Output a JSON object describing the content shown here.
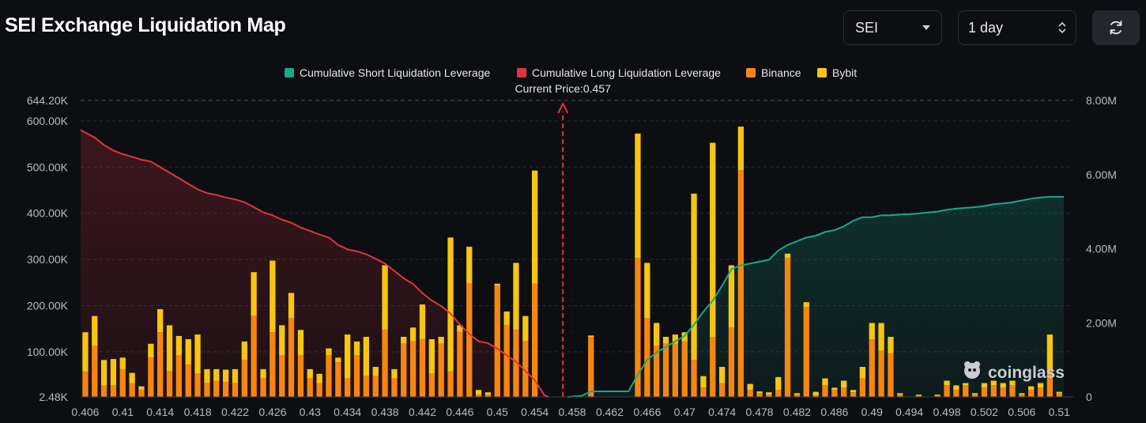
{
  "header": {
    "title": "SEI Exchange Liquidation Map",
    "coin_select": "SEI",
    "range_select": "1 day"
  },
  "colors": {
    "short_line": "#16a98a",
    "long_line": "#e0353e",
    "binance": "#f7860f",
    "bybit": "#f8c50f",
    "background": "#0d0e12"
  },
  "icons": {
    "refresh": "refresh-icon",
    "coin_caret": "caret-down-icon",
    "range_caret": "up-down-caret-icon",
    "watermark": "coinglass-logo-icon"
  },
  "watermark": "coinglass",
  "chart_data": {
    "type": "bar",
    "legend": [
      {
        "label": "Cumulative Short Liquidation Leverage",
        "color": "#16a98a"
      },
      {
        "label": "Cumulative Long Liquidation Leverage",
        "color": "#e0353e"
      },
      {
        "label": "Binance",
        "color": "#f7860f"
      },
      {
        "label": "Bybit",
        "color": "#f8c50f"
      }
    ],
    "legend_position": "top-center",
    "annotation": "Current Price:0.457",
    "current_price": 0.457,
    "x_range": [
      0.4055,
      0.5115
    ],
    "x_ticks": [
      "0.406",
      "0.41",
      "0.414",
      "0.418",
      "0.422",
      "0.426",
      "0.43",
      "0.434",
      "0.438",
      "0.442",
      "0.446",
      "0.45",
      "0.454",
      "0.458",
      "0.462",
      "0.466",
      "0.47",
      "0.474",
      "0.478",
      "0.482",
      "0.486",
      "0.49",
      "0.494",
      "0.498",
      "0.502",
      "0.506",
      "0.51"
    ],
    "y_left": {
      "min": 2480,
      "max": 644200,
      "ticks": [
        "2.48K",
        "100.00K",
        "200.00K",
        "300.00K",
        "400.00K",
        "500.00K",
        "600.00K",
        "644.20K"
      ]
    },
    "y_right": {
      "min": 0,
      "max": 8000000,
      "ticks": [
        "0",
        "2.00M",
        "4.00M",
        "6.00M",
        "8.00M"
      ]
    },
    "grid": true,
    "bars": [
      {
        "x": 0.406,
        "binance": 55000,
        "bybit": 85000
      },
      {
        "x": 0.407,
        "binance": 110000,
        "bybit": 65000
      },
      {
        "x": 0.408,
        "binance": 25000,
        "bybit": 55000
      },
      {
        "x": 0.409,
        "binance": 25000,
        "bybit": 57000
      },
      {
        "x": 0.41,
        "binance": 60000,
        "bybit": 25000
      },
      {
        "x": 0.411,
        "binance": 30000,
        "bybit": 22000
      },
      {
        "x": 0.412,
        "binance": 15000,
        "bybit": 8000
      },
      {
        "x": 0.413,
        "binance": 85000,
        "bybit": 30000
      },
      {
        "x": 0.414,
        "binance": 140000,
        "bybit": 50000
      },
      {
        "x": 0.415,
        "binance": 55000,
        "bybit": 100000
      },
      {
        "x": 0.416,
        "binance": 90000,
        "bybit": 42000
      },
      {
        "x": 0.417,
        "binance": 70000,
        "bybit": 55000
      },
      {
        "x": 0.418,
        "binance": 50000,
        "bybit": 85000
      },
      {
        "x": 0.419,
        "binance": 30000,
        "bybit": 30000
      },
      {
        "x": 0.42,
        "binance": 35000,
        "bybit": 25000
      },
      {
        "x": 0.421,
        "binance": 32000,
        "bybit": 27000
      },
      {
        "x": 0.422,
        "binance": 30000,
        "bybit": 30000
      },
      {
        "x": 0.423,
        "binance": 80000,
        "bybit": 40000
      },
      {
        "x": 0.424,
        "binance": 175000,
        "bybit": 95000
      },
      {
        "x": 0.425,
        "binance": 40000,
        "bybit": 20000
      },
      {
        "x": 0.426,
        "binance": 140000,
        "bybit": 155000
      },
      {
        "x": 0.427,
        "binance": 90000,
        "bybit": 65000
      },
      {
        "x": 0.428,
        "binance": 170000,
        "bybit": 55000
      },
      {
        "x": 0.429,
        "binance": 90000,
        "bybit": 55000
      },
      {
        "x": 0.43,
        "binance": 40000,
        "bybit": 20000
      },
      {
        "x": 0.431,
        "binance": 30000,
        "bybit": 20000
      },
      {
        "x": 0.432,
        "binance": 90000,
        "bybit": 15000
      },
      {
        "x": 0.433,
        "binance": 75000,
        "bybit": 10000
      },
      {
        "x": 0.434,
        "binance": 40000,
        "bybit": 95000
      },
      {
        "x": 0.435,
        "binance": 90000,
        "bybit": 30000
      },
      {
        "x": 0.436,
        "binance": 45000,
        "bybit": 85000
      },
      {
        "x": 0.437,
        "binance": 45000,
        "bybit": 20000
      },
      {
        "x": 0.438,
        "binance": 145000,
        "bybit": 140000
      },
      {
        "x": 0.439,
        "binance": 40000,
        "bybit": 20000
      },
      {
        "x": 0.44,
        "binance": 115000,
        "bybit": 15000
      },
      {
        "x": 0.441,
        "binance": 120000,
        "bybit": 30000
      },
      {
        "x": 0.442,
        "binance": 125000,
        "bybit": 75000
      },
      {
        "x": 0.443,
        "binance": 50000,
        "bybit": 75000
      },
      {
        "x": 0.444,
        "binance": 115000,
        "bybit": 15000
      },
      {
        "x": 0.445,
        "binance": 55000,
        "bybit": 290000
      },
      {
        "x": 0.446,
        "binance": 140000,
        "bybit": 15000
      },
      {
        "x": 0.447,
        "binance": 245000,
        "bybit": 80000
      },
      {
        "x": 0.448,
        "binance": 5000,
        "bybit": 10000
      },
      {
        "x": 0.449,
        "binance": 5000,
        "bybit": 5000
      },
      {
        "x": 0.45,
        "binance": 240000,
        "bybit": 5000
      },
      {
        "x": 0.451,
        "binance": 155000,
        "bybit": 30000
      },
      {
        "x": 0.452,
        "binance": 145000,
        "bybit": 145000
      },
      {
        "x": 0.453,
        "binance": 120000,
        "bybit": 55000
      },
      {
        "x": 0.454,
        "binance": 245000,
        "bybit": 245000
      },
      {
        "x": 0.46,
        "binance": 130000,
        "bybit": 3000
      },
      {
        "x": 0.465,
        "binance": 300000,
        "bybit": 270000
      },
      {
        "x": 0.466,
        "binance": 170000,
        "bybit": 120000
      },
      {
        "x": 0.467,
        "binance": 110000,
        "bybit": 50000
      },
      {
        "x": 0.468,
        "binance": 115000,
        "bybit": 15000
      },
      {
        "x": 0.469,
        "binance": 115000,
        "bybit": 20000
      },
      {
        "x": 0.47,
        "binance": 120000,
        "bybit": 20000
      },
      {
        "x": 0.471,
        "binance": 80000,
        "bybit": 360000
      },
      {
        "x": 0.472,
        "binance": 20000,
        "bybit": 25000
      },
      {
        "x": 0.473,
        "binance": 130000,
        "bybit": 420000
      },
      {
        "x": 0.474,
        "binance": 30000,
        "bybit": 35000
      },
      {
        "x": 0.475,
        "binance": 150000,
        "bybit": 135000
      },
      {
        "x": 0.476,
        "binance": 490000,
        "bybit": 95000
      },
      {
        "x": 0.477,
        "binance": 15000,
        "bybit": 13000
      },
      {
        "x": 0.478,
        "binance": 8000,
        "bybit": 4000
      },
      {
        "x": 0.479,
        "binance": 5000,
        "bybit": 5000
      },
      {
        "x": 0.48,
        "binance": 15000,
        "bybit": 28000
      },
      {
        "x": 0.481,
        "binance": 300000,
        "bybit": 10000
      },
      {
        "x": 0.482,
        "binance": 5000,
        "bybit": 3000
      },
      {
        "x": 0.483,
        "binance": 195000,
        "bybit": 10000
      },
      {
        "x": 0.484,
        "binance": 3000,
        "bybit": 8000
      },
      {
        "x": 0.485,
        "binance": 25000,
        "bybit": 15000
      },
      {
        "x": 0.486,
        "binance": 15000,
        "bybit": 5000
      },
      {
        "x": 0.487,
        "binance": 20000,
        "bybit": 15000
      },
      {
        "x": 0.488,
        "binance": 10000,
        "bybit": 5000
      },
      {
        "x": 0.489,
        "binance": 40000,
        "bybit": 25000
      },
      {
        "x": 0.49,
        "binance": 125000,
        "bybit": 35000
      },
      {
        "x": 0.491,
        "binance": 100000,
        "bybit": 60000
      },
      {
        "x": 0.492,
        "binance": 95000,
        "bybit": 35000
      },
      {
        "x": 0.493,
        "binance": 5000,
        "bybit": 3000
      },
      {
        "x": 0.495,
        "binance": 3000,
        "bybit": 2000
      },
      {
        "x": 0.497,
        "binance": 3000,
        "bybit": 2000
      },
      {
        "x": 0.498,
        "binance": 25000,
        "bybit": 10000
      },
      {
        "x": 0.499,
        "binance": 15000,
        "bybit": 10000
      },
      {
        "x": 0.5,
        "binance": 25000,
        "bybit": 5000
      },
      {
        "x": 0.501,
        "binance": 5000,
        "bybit": 3000
      },
      {
        "x": 0.502,
        "binance": 20000,
        "bybit": 10000
      },
      {
        "x": 0.503,
        "binance": 25000,
        "bybit": 10000
      },
      {
        "x": 0.504,
        "binance": 20000,
        "bybit": 10000
      },
      {
        "x": 0.505,
        "binance": 25000,
        "bybit": 10000
      },
      {
        "x": 0.506,
        "binance": 5000,
        "bybit": 3000
      },
      {
        "x": 0.507,
        "binance": 15000,
        "bybit": 8000
      },
      {
        "x": 0.508,
        "binance": 20000,
        "bybit": 10000
      },
      {
        "x": 0.509,
        "binance": 60000,
        "bybit": 75000
      },
      {
        "x": 0.51,
        "binance": 8000,
        "bybit": 3000
      }
    ],
    "long_cumulative": [
      [
        0.4055,
        7200000.0
      ],
      [
        0.407,
        7000000.0
      ],
      [
        0.408,
        6800000.0
      ],
      [
        0.409,
        6650000.0
      ],
      [
        0.41,
        6550000.0
      ],
      [
        0.411,
        6480000.0
      ],
      [
        0.412,
        6400000.0
      ],
      [
        0.413,
        6350000.0
      ],
      [
        0.414,
        6200000.0
      ],
      [
        0.415,
        6050000.0
      ],
      [
        0.416,
        5900000.0
      ],
      [
        0.417,
        5750000.0
      ],
      [
        0.418,
        5600000.0
      ],
      [
        0.419,
        5500000.0
      ],
      [
        0.42,
        5450000.0
      ],
      [
        0.421,
        5380000.0
      ],
      [
        0.422,
        5330000.0
      ],
      [
        0.423,
        5250000.0
      ],
      [
        0.424,
        5120000.0
      ],
      [
        0.425,
        4980000.0
      ],
      [
        0.426,
        4900000.0
      ],
      [
        0.427,
        4780000.0
      ],
      [
        0.428,
        4700000.0
      ],
      [
        0.429,
        4570000.0
      ],
      [
        0.43,
        4480000.0
      ],
      [
        0.431,
        4380000.0
      ],
      [
        0.432,
        4300000.0
      ],
      [
        0.433,
        4100000.0
      ],
      [
        0.434,
        3980000.0
      ],
      [
        0.435,
        3930000.0
      ],
      [
        0.436,
        3850000.0
      ],
      [
        0.437,
        3730000.0
      ],
      [
        0.438,
        3600000.0
      ],
      [
        0.439,
        3400000.0
      ],
      [
        0.44,
        3200000.0
      ],
      [
        0.441,
        3050000.0
      ],
      [
        0.442,
        2800000.0
      ],
      [
        0.443,
        2600000.0
      ],
      [
        0.444,
        2450000.0
      ],
      [
        0.445,
        2250000.0
      ],
      [
        0.446,
        1950000.0
      ],
      [
        0.447,
        1700000.0
      ],
      [
        0.448,
        1500000.0
      ],
      [
        0.449,
        1450000.0
      ],
      [
        0.45,
        1300000.0
      ],
      [
        0.451,
        1120000.0
      ],
      [
        0.452,
        950000.0
      ],
      [
        0.453,
        700000.0
      ],
      [
        0.454,
        450000.0
      ],
      [
        0.455,
        50000.0
      ],
      [
        0.4555,
        0
      ]
    ],
    "short_cumulative": [
      [
        0.4575,
        0
      ],
      [
        0.459,
        30000.0
      ],
      [
        0.46,
        150000.0
      ],
      [
        0.461,
        150000.0
      ],
      [
        0.462,
        150000.0
      ],
      [
        0.463,
        150000.0
      ],
      [
        0.464,
        150000.0
      ],
      [
        0.465,
        600000.0
      ],
      [
        0.466,
        1000000.0
      ],
      [
        0.467,
        1200000.0
      ],
      [
        0.468,
        1350000.0
      ],
      [
        0.469,
        1500000.0
      ],
      [
        0.47,
        1650000.0
      ],
      [
        0.471,
        1950000.0
      ],
      [
        0.472,
        2300000.0
      ],
      [
        0.473,
        2600000.0
      ],
      [
        0.474,
        3000000.0
      ],
      [
        0.475,
        3450000.0
      ],
      [
        0.476,
        3550000.0
      ],
      [
        0.477,
        3600000.0
      ],
      [
        0.478,
        3650000.0
      ],
      [
        0.479,
        3700000.0
      ],
      [
        0.48,
        3950000.0
      ],
      [
        0.481,
        4100000.0
      ],
      [
        0.482,
        4200000.0
      ],
      [
        0.483,
        4300000.0
      ],
      [
        0.484,
        4350000.0
      ],
      [
        0.485,
        4450000.0
      ],
      [
        0.486,
        4500000.0
      ],
      [
        0.487,
        4600000.0
      ],
      [
        0.488,
        4750000.0
      ],
      [
        0.489,
        4850000.0
      ],
      [
        0.49,
        4850000.0
      ],
      [
        0.491,
        4900000.0
      ],
      [
        0.492,
        4900000.0
      ],
      [
        0.493,
        4920000.0
      ],
      [
        0.494,
        4930000.0
      ],
      [
        0.495,
        4950000.0
      ],
      [
        0.496,
        4980000.0
      ],
      [
        0.497,
        5000000.0
      ],
      [
        0.498,
        5050000.0
      ],
      [
        0.499,
        5080000.0
      ],
      [
        0.5,
        5100000.0
      ],
      [
        0.501,
        5120000.0
      ],
      [
        0.502,
        5150000.0
      ],
      [
        0.503,
        5200000.0
      ],
      [
        0.504,
        5220000.0
      ],
      [
        0.505,
        5250000.0
      ],
      [
        0.506,
        5300000.0
      ],
      [
        0.507,
        5350000.0
      ],
      [
        0.508,
        5380000.0
      ],
      [
        0.509,
        5400000.0
      ],
      [
        0.5105,
        5400000.0
      ]
    ]
  }
}
